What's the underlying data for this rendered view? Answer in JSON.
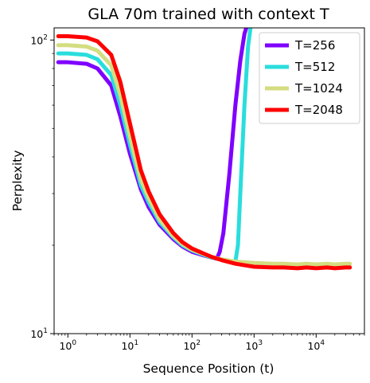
{
  "chart_data": {
    "type": "line",
    "title": "GLA 70m trained with context T",
    "xlabel": "Sequence Position (t)",
    "ylabel": "Perplexity",
    "xscale": "log",
    "yscale": "log",
    "xlim": [
      0.6,
      60000
    ],
    "ylim": [
      10,
      110
    ],
    "xticks": [
      {
        "value": 1,
        "base": "10",
        "exp": "0"
      },
      {
        "value": 10,
        "base": "10",
        "exp": "1"
      },
      {
        "value": 100,
        "base": "10",
        "exp": "2"
      },
      {
        "value": 1000,
        "base": "10",
        "exp": "3"
      },
      {
        "value": 10000,
        "base": "10",
        "exp": "4"
      }
    ],
    "yticks": [
      {
        "value": 10,
        "base": "10",
        "exp": "1"
      },
      {
        "value": 100,
        "base": "10",
        "exp": "2"
      }
    ],
    "legend_position": "top-right",
    "grid": false,
    "series": [
      {
        "name": "T=256",
        "color": "#7f00ff",
        "x": [
          0.7,
          1,
          2,
          3,
          5,
          7,
          10,
          15,
          20,
          30,
          50,
          70,
          100,
          150,
          200,
          250,
          280,
          320,
          400,
          500,
          600,
          700,
          800
        ],
        "y": [
          84,
          84,
          83,
          80,
          70,
          55,
          41,
          31,
          27,
          23.5,
          21,
          19.8,
          19,
          18.5,
          18.2,
          18,
          19,
          22,
          35,
          60,
          85,
          105,
          115
        ]
      },
      {
        "name": "T=512",
        "color": "#2adddd",
        "x": [
          0.7,
          1,
          2,
          3,
          5,
          7,
          10,
          15,
          20,
          30,
          50,
          70,
          100,
          150,
          200,
          300,
          400,
          500,
          550,
          600,
          700,
          800,
          900
        ],
        "y": [
          90,
          90,
          89,
          86,
          76,
          60,
          44,
          32,
          28,
          24,
          21.3,
          20,
          19.2,
          18.6,
          18.2,
          17.9,
          17.7,
          17.6,
          20,
          30,
          60,
          95,
          115
        ]
      },
      {
        "name": "T=1024",
        "color": "#d4dd80",
        "x": [
          0.7,
          1,
          2,
          3,
          5,
          7,
          10,
          15,
          20,
          30,
          50,
          70,
          100,
          200,
          300,
          500,
          700,
          1000,
          2000,
          3000,
          5000,
          7000,
          10000,
          15000,
          20000,
          30000,
          35000
        ],
        "y": [
          96,
          96,
          95,
          92,
          82,
          65,
          47,
          33.5,
          29,
          24.5,
          21.5,
          20.2,
          19.3,
          18.3,
          17.9,
          17.6,
          17.5,
          17.4,
          17.3,
          17.3,
          17.2,
          17.3,
          17.2,
          17.3,
          17.2,
          17.3,
          17.3
        ]
      },
      {
        "name": "T=2048",
        "color": "#ff0000",
        "x": [
          0.7,
          1,
          2,
          3,
          5,
          7,
          10,
          15,
          20,
          30,
          50,
          70,
          100,
          200,
          300,
          500,
          700,
          1000,
          2000,
          3000,
          5000,
          7000,
          10000,
          15000,
          20000,
          30000,
          35000
        ],
        "y": [
          103,
          103,
          102,
          99,
          89,
          72,
          52,
          36,
          30.5,
          25.5,
          22,
          20.5,
          19.5,
          18.3,
          17.8,
          17.3,
          17.1,
          16.9,
          16.8,
          16.8,
          16.7,
          16.8,
          16.7,
          16.8,
          16.7,
          16.8,
          16.8
        ]
      }
    ]
  }
}
